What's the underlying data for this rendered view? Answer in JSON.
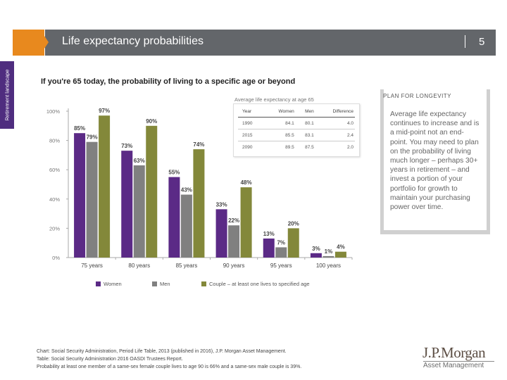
{
  "header": {
    "title": "Life expectancy probabilities",
    "page_number": "5",
    "side_tab": "Retirement landscape"
  },
  "colors": {
    "header_gray": "#63666a",
    "accent_orange": "#e8891e",
    "side_purple": "#4f2d7f",
    "women": "#5b2a86",
    "men": "#808080",
    "couple": "#83883a"
  },
  "table": {
    "caption": "Average life expectancy at age 65",
    "headers": [
      "Year",
      "Women",
      "Men",
      "Difference"
    ],
    "rows": [
      [
        "1990",
        "84.1",
        "80.1",
        "4.0"
      ],
      [
        "2015",
        "85.5",
        "83.1",
        "2.4"
      ],
      [
        "2090",
        "89.5",
        "87.5",
        "2.0"
      ]
    ]
  },
  "side_box": {
    "title": "PLAN FOR LONGEVITY",
    "body": "Average life expectancy continues to increase and is a mid-point not an end-point. You may need to plan on the probability of living much longer – perhaps 30+ years in retirement – and invest a portion of your portfolio for growth to maintain your purchasing power over time."
  },
  "footnotes": [
    "Chart: Social Security Administration, Period Life Table, 2013 (published in 2016), J.P. Morgan Asset Management.",
    "Table: Social Security Administration 2016 OASDI Trustees Report.",
    "Probability at least one member of a same-sex female couple lives to age 90 is 66% and a same-sex male couple is 39%."
  ],
  "logo": {
    "name": "J.P.Morgan",
    "sub": "Asset Management"
  },
  "chart_data": {
    "type": "bar",
    "title": "If you're 65 today, the probability of living to a specific age or beyond",
    "xlabel": "",
    "ylabel": "",
    "categories": [
      "75 years",
      "80 years",
      "85 years",
      "90 years",
      "95 years",
      "100 years"
    ],
    "series": [
      {
        "name": "Women",
        "values": [
          85,
          73,
          55,
          33,
          13,
          3
        ]
      },
      {
        "name": "Men",
        "values": [
          79,
          63,
          43,
          22,
          7,
          1
        ]
      },
      {
        "name": "Couple – at least one lives to specified age",
        "values": [
          97,
          90,
          74,
          48,
          20,
          4
        ]
      }
    ],
    "ylim": [
      0,
      100
    ],
    "yticks": [
      0,
      20,
      40,
      60,
      80,
      100
    ],
    "ytick_labels": [
      "0%",
      "20%",
      "40%",
      "60%",
      "80%",
      "100%"
    ],
    "value_suffix": "%",
    "grid": false,
    "legend": "bottom"
  }
}
